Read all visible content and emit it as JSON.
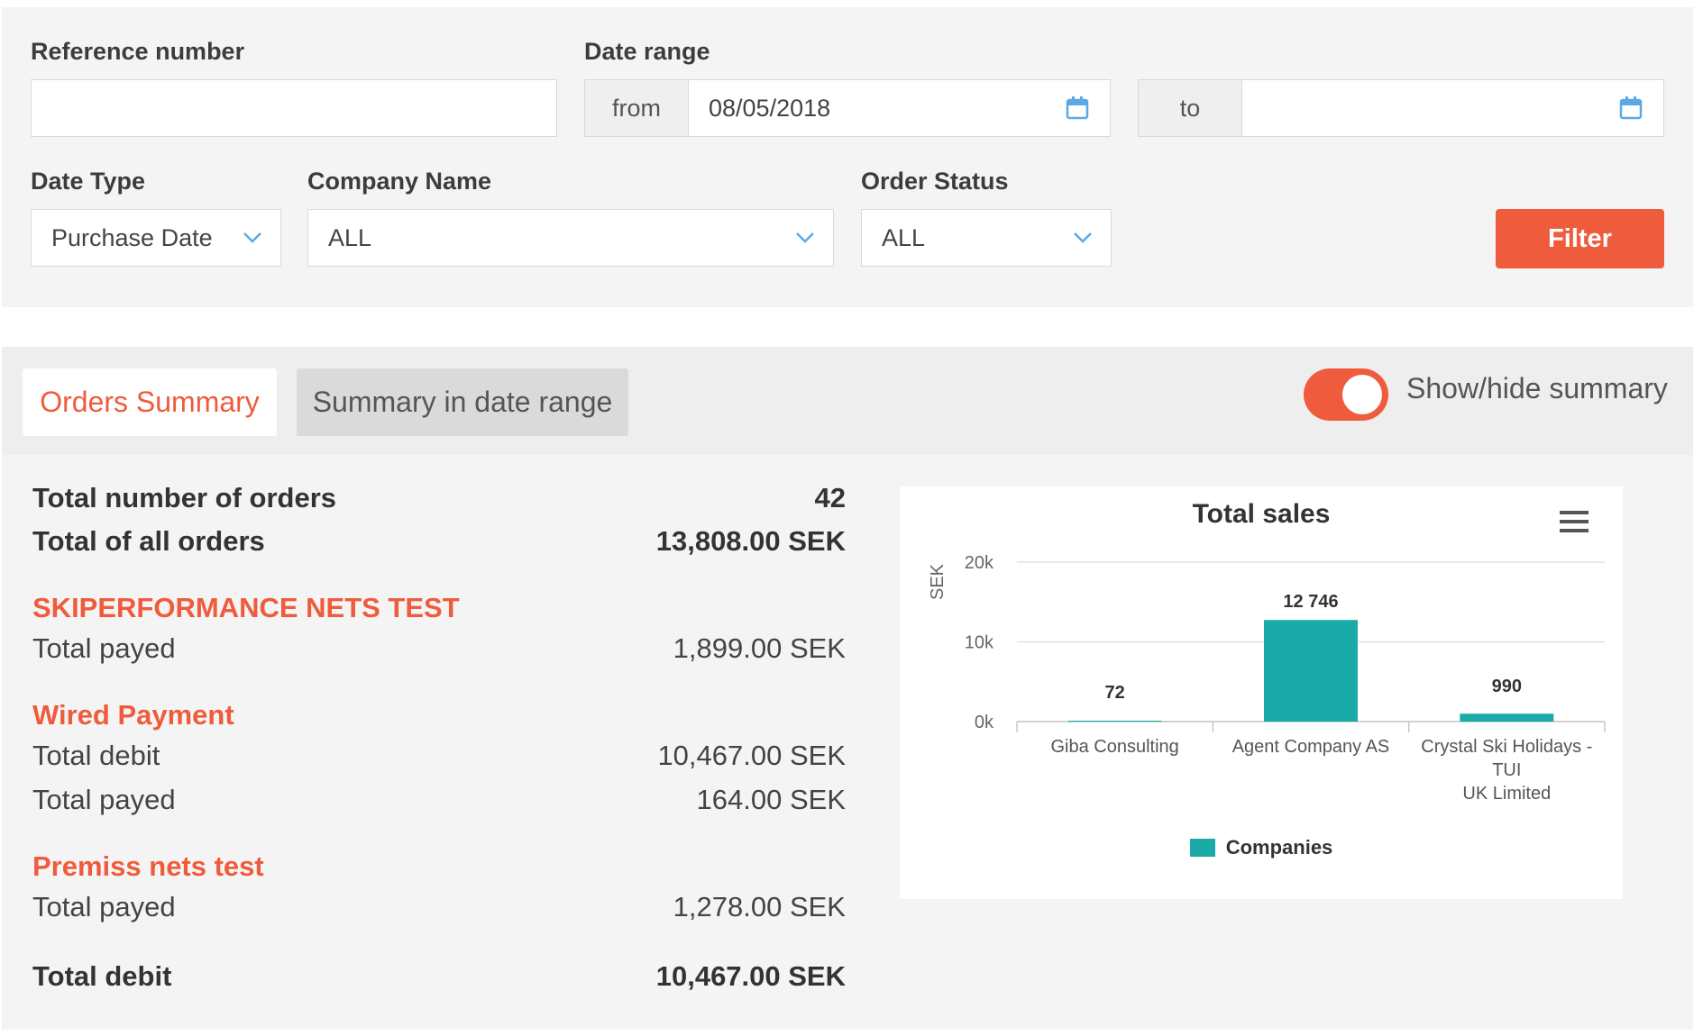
{
  "filters": {
    "reference_label": "Reference number",
    "reference_value": "",
    "date_range_label": "Date range",
    "from_label": "from",
    "from_value": "08/05/2018",
    "to_label": "to",
    "to_value": "",
    "date_type_label": "Date Type",
    "date_type_value": "Purchase Date",
    "company_label": "Company Name",
    "company_value": "ALL",
    "status_label": "Order Status",
    "status_value": "ALL",
    "filter_button": "Filter"
  },
  "tabs": {
    "orders_summary": "Orders Summary",
    "summary_in_range": "Summary in date range",
    "toggle_label": "Show/hide summary",
    "toggle_on": true
  },
  "summary": {
    "total_orders_label": "Total number of orders",
    "total_orders_value": "42",
    "total_all_label": "Total of all orders",
    "total_all_value": "13,808.00 SEK",
    "sections": [
      {
        "name": "SKIPERFORMANCE NETS TEST",
        "rows": [
          {
            "label": "Total payed",
            "value": "1,899.00 SEK"
          }
        ]
      },
      {
        "name": "Wired Payment",
        "rows": [
          {
            "label": "Total debit",
            "value": "10,467.00 SEK"
          },
          {
            "label": "Total payed",
            "value": "164.00 SEK"
          }
        ]
      },
      {
        "name": "Premiss nets test",
        "rows": [
          {
            "label": "Total payed",
            "value": "1,278.00 SEK"
          }
        ]
      }
    ],
    "total_debit_label": "Total debit",
    "total_debit_value": "10,467.00 SEK"
  },
  "colors": {
    "accent": "#ef5b3d",
    "bar": "#1aaba8"
  },
  "icons": {
    "calendar": "calendar-icon",
    "chevron": "chevron-down-icon",
    "menu": "hamburger-menu-icon"
  },
  "chart_data": {
    "type": "bar",
    "title": "Total sales",
    "ylabel": "SEK",
    "xlabel": "",
    "categories": [
      "Giba Consulting",
      "Agent Company AS",
      "Crystal Ski Holidays - TUI UK Limited"
    ],
    "category_lines": [
      [
        "Giba Consulting"
      ],
      [
        "Agent Company AS"
      ],
      [
        "Crystal Ski Holidays -",
        "TUI",
        "UK Limited"
      ]
    ],
    "series": [
      {
        "name": "Companies",
        "values": [
          72,
          12746,
          990
        ],
        "labels": [
          "72",
          "12 746",
          "990"
        ]
      }
    ],
    "ylim": [
      0,
      20000
    ],
    "yticks": [
      0,
      10000,
      20000
    ],
    "ytick_labels": [
      "0k",
      "10k",
      "20k"
    ],
    "legend": "bottom",
    "grid": true
  }
}
